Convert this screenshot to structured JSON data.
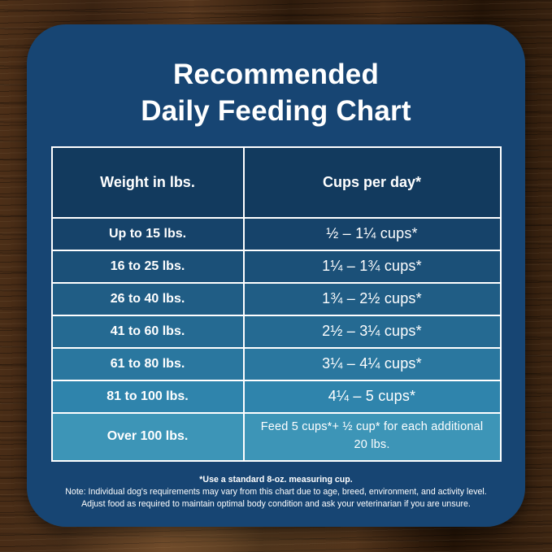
{
  "title": {
    "line1": "Recommended",
    "line2": "Daily Feeding Chart"
  },
  "table": {
    "headers": [
      "Weight in lbs.",
      "Cups per day*"
    ],
    "rows": [
      {
        "weight": "Up to 15 lbs.",
        "cups": "½ – 1¼ cups*",
        "bg": "#16436a"
      },
      {
        "weight": "16 to 25 lbs.",
        "cups": "1¼ – 1¾  cups*",
        "bg": "#1b5078"
      },
      {
        "weight": "26 to 40 lbs.",
        "cups": "1¾ – 2½ cups*",
        "bg": "#205d85"
      },
      {
        "weight": "41 to 60 lbs.",
        "cups": "2½ – 3¼ cups*",
        "bg": "#256a92"
      },
      {
        "weight": "61 to 80 lbs.",
        "cups": "3¼ – 4¼ cups*",
        "bg": "#2a779f"
      },
      {
        "weight": "81 to 100 lbs.",
        "cups": "4¼ – 5 cups*",
        "bg": "#2f84ac"
      },
      {
        "weight": "Over 100 lbs.",
        "cups": "Feed 5 cups*+ ½ cup* for each additional 20 lbs.",
        "bg": "#3d95b7"
      }
    ]
  },
  "footnotes": {
    "line1": "*Use a standard 8-oz. measuring cup.",
    "line2": "Note: Individual dog's requirements may vary from this chart due to age, breed, environment, and activity level.",
    "line3": "Adjust food as required to maintain optimal body condition and ask your veterinarian if you are unsure."
  },
  "colors": {
    "card_bg": "#174573",
    "header_bg": "#123a5e",
    "border": "#ffffff",
    "title_text": "#ffffff",
    "wood_base": "#3a2312"
  },
  "chart_data": {
    "type": "table",
    "title": "Recommended Daily Feeding Chart",
    "columns": [
      "Weight in lbs.",
      "Cups per day*"
    ],
    "rows": [
      [
        "Up to 15 lbs.",
        "½ – 1¼ cups*"
      ],
      [
        "16 to 25 lbs.",
        "1¼ – 1¾ cups*"
      ],
      [
        "26 to 40 lbs.",
        "1¾ – 2½ cups*"
      ],
      [
        "41 to 60 lbs.",
        "2½ – 3¼ cups*"
      ],
      [
        "61 to 80 lbs.",
        "3¼ – 4¼ cups*"
      ],
      [
        "81 to 100 lbs.",
        "4¼ – 5 cups*"
      ],
      [
        "Over 100 lbs.",
        "Feed 5 cups*+ ½ cup* for each additional 20 lbs."
      ]
    ],
    "footnote": "*Use a standard 8-oz. measuring cup."
  }
}
